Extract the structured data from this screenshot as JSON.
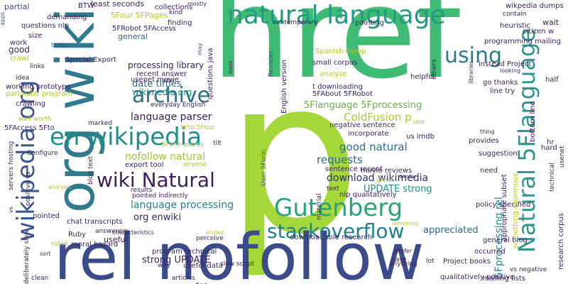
{
  "words": {
    "href": "href",
    "p": "p",
    "rel_nofollow": "rel nofollow",
    "org_wiki": "org wiki",
    "natural_language": "natural language",
    "en_wikipedia": "en wikipedia",
    "gutenberg": "Gutenberg",
    "stackoverflow": "stackoverflow",
    "archive": "archive",
    "using": "using",
    "wiki_natural": "wiki Natural",
    "wikipedia_org": "wikipedia org",
    "natural_5flanguage": "Natural 5Flanguage",
    "language_parser": "language parser",
    "nofollow_natural": "nofollow natural",
    "coldfusion_p": "ColdFusion p",
    "download_wikimedia": "download wikimedia",
    "language_processing": "language processing",
    "5fprocessing_rel": "5Fprocessing rel",
    "good_natural": "good natural",
    "update_strong": "UPDATE strong",
    "strong_update": "strong UPDATE",
    "requests": "requests",
    "processing_library": "processing library",
    "date_times": "date times",
    "wikimedia_org": "wikimedia org",
    "5flanguage_5fprocessing": "5Flanguage 5Fprocessing",
    "org_enwiki": "org enwiki",
    "appreciated": "appreciated",
    "btw": "BTW",
    "least_seconds": "least seconds",
    "collections": "collections",
    "mostly": "mostly",
    "wikpedia_dumps": "wikpedia dumps",
    "partial": "partial",
    "5four_5fpages": "5Four 5FPages",
    "kind": "kind",
    "contain": "contain",
    "wait": "wait",
    "demanding": "demanding",
    "finding": "finding",
    "contemporary": "contemporary",
    "pointing": "pointing",
    "heuristic": "heuristic",
    "citizen_w": "citizen w",
    "questions_nlp": "questions nlp",
    "5frobot_5faccess": "5FRobot 5FAccess",
    "general": "general",
    "programming_mailing": "programming mailing",
    "size": "size",
    "work": "work",
    "twitter": "twitter",
    "good": "good",
    "crawl": "crawl",
    "links": "links",
    "special_export": "Special Export",
    "recent_answer": "recent answer",
    "usenet_movie": "usenet movie",
    "infer": "infer",
    "idea": "idea",
    "working_prototype": "working prototype",
    "particular_program": "particular program",
    "crawling": "crawling",
    "well_worth": "well worth",
    "5faccess_5fto": "5FAccess 5Fto",
    "servers_hosting": "servers hosting",
    "configure": "Configure",
    "analysis": "analysis",
    "pointed": "pointed",
    "chat_transcripts": "chat transcripts",
    "answerers": "answerers",
    "ruby": "Ruby",
    "robot": "robot",
    "moral_hazard": "moral hazard",
    "deliberately_slow": "deliberately slow",
    "sort": "sort",
    "clean": "clean",
    "useful": "useful",
    "articles": "articles",
    "find": "find",
    "way": "way",
    "useful_data": "useful data",
    "slow_script": "slow script",
    "anything": "anything",
    "case": "case",
    "lot": "lot",
    "mailing_lists": "mailing lists",
    "qualitatively_positive": "qualitatively positive",
    "project_books": "Project books",
    "occurred": "occurred",
    "general_blog": "general blog",
    "research_corpus": "research corpus",
    "prefer": "prefer",
    "5fto_5four": "5Fto 5Four",
    "5forin_points": "5Forin points",
    "tilt": "tilt",
    "everyday_english": "everyday English",
    "marked": "marked",
    "export_tool": "export tool",
    "anyone": "anyone",
    "results": "results",
    "pointed_indirectly": "pointed indirectly",
    "characteristics": "characteristics",
    "ended": "ended",
    "perceive": "perceive",
    "program_technical": "program technical",
    "downloadable_research": "downloadable research",
    "nlp_qualitatively": "nlp qualitatively",
    "movie_reviews": "movie reviews",
    "great": "great",
    "text": "text",
    "similar": "Similar",
    "something": "something",
    "material": "material",
    "sentence_recent": "sentence recent",
    "negative_sentence": "negative sentence",
    "incorporate": "incorporate",
    "us_imdb": "us imdb",
    "use": "use",
    "t_downloading": "t downloading",
    "5fabout_5frobot": "5FAbout 5FRobot",
    "analyze": "analyze",
    "spanish_dump": "Spanish dump",
    "small_corpus": "small corpus",
    "helpful": "helpful",
    "others": "others",
    "instead_project": "instead Project",
    "looking": "looking",
    "go_thanks": "go thanks",
    "line_try": "line try",
    "half": "half",
    "bottom_line": "bottom line",
    "thing": "thing",
    "provides": "provides",
    "suggestion": "suggestion",
    "hard": "hard",
    "hr": "hr",
    "need": "need",
    "policy_specified": "policy specified",
    "appropriate_subset": "appropriate subset",
    "something_enormous": "something enormous",
    "vs_negative": "vs negative",
    "usenet": "usenet",
    "technical": "technical",
    "libraries": "libraries",
    "leads": "leads",
    "reviews": "Reviews",
    "english_version": "English version",
    "user_5forin": "User 5Forin",
    "questions_java": "questions java",
    "may": "may",
    "apps": "apps",
    "blog_text": "blog text",
    "positive_vs": "positive vs",
    "vs": "vs"
  }
}
